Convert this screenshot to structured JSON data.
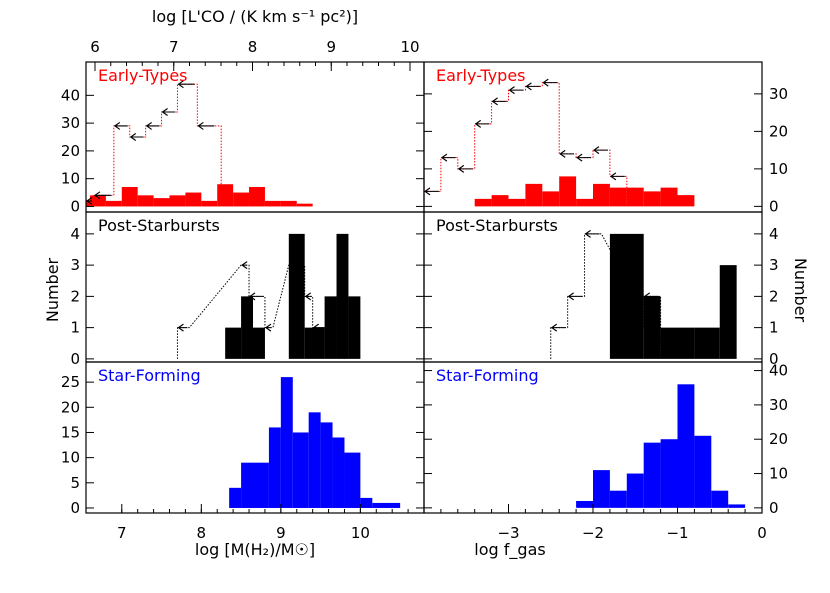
{
  "figure": {
    "top_axis_label": "log [L'CO / (K km s⁻¹ pc²)]",
    "top_axis_ticks": [
      6,
      7,
      8,
      9,
      10
    ],
    "left_xlabel": "log [M(H₂)/M☉]",
    "right_xlabel": "log f_gas",
    "ylabel": "Number"
  },
  "chart_data": [
    {
      "type": "bar",
      "panel": "left-top",
      "title": "Early-Types",
      "color": "#ff0000",
      "xlim": [
        6.55,
        10.8
      ],
      "ylim": [
        -2,
        52
      ],
      "yticks": [
        0,
        10,
        20,
        30,
        40
      ],
      "ticks_side": "left",
      "bins": [
        {
          "x0": 6.4,
          "x1": 6.6,
          "v": 2
        },
        {
          "x0": 6.6,
          "x1": 6.8,
          "v": 4
        },
        {
          "x0": 6.8,
          "x1": 7.0,
          "v": 2
        },
        {
          "x0": 7.0,
          "x1": 7.2,
          "v": 7
        },
        {
          "x0": 7.2,
          "x1": 7.4,
          "v": 4
        },
        {
          "x0": 7.4,
          "x1": 7.6,
          "v": 3
        },
        {
          "x0": 7.6,
          "x1": 7.8,
          "v": 4
        },
        {
          "x0": 7.8,
          "x1": 8.0,
          "v": 5
        },
        {
          "x0": 8.0,
          "x1": 8.2,
          "v": 2
        },
        {
          "x0": 8.2,
          "x1": 8.4,
          "v": 8
        },
        {
          "x0": 8.4,
          "x1": 8.6,
          "v": 5
        },
        {
          "x0": 8.6,
          "x1": 8.8,
          "v": 7
        },
        {
          "x0": 8.8,
          "x1": 9.0,
          "v": 2
        },
        {
          "x0": 9.0,
          "x1": 9.2,
          "v": 2
        },
        {
          "x0": 9.2,
          "x1": 9.4,
          "v": 1
        }
      ],
      "limits": [
        {
          "x0": 6.55,
          "x1": 6.65,
          "v": 2
        },
        {
          "x0": 6.65,
          "x1": 6.9,
          "v": 4
        },
        {
          "x0": 6.9,
          "x1": 7.1,
          "v": 29
        },
        {
          "x0": 7.1,
          "x1": 7.3,
          "v": 25
        },
        {
          "x0": 7.3,
          "x1": 7.5,
          "v": 29
        },
        {
          "x0": 7.5,
          "x1": 7.7,
          "v": 34
        },
        {
          "x0": 7.7,
          "x1": 7.95,
          "v": 44
        },
        {
          "x0": 7.95,
          "x1": 8.25,
          "v": 29
        }
      ]
    },
    {
      "type": "bar",
      "panel": "right-top",
      "title": "Early-Types",
      "color": "#ff0000",
      "xlim": [
        -4,
        0
      ],
      "ylim": [
        -1.5,
        38.5
      ],
      "yticks": [
        0,
        10,
        20,
        30
      ],
      "ticks_side": "right",
      "bins": [
        {
          "x0": -3.4,
          "x1": -3.2,
          "v": 2
        },
        {
          "x0": -3.2,
          "x1": -3.0,
          "v": 3
        },
        {
          "x0": -3.0,
          "x1": -2.8,
          "v": 2
        },
        {
          "x0": -2.8,
          "x1": -2.6,
          "v": 6
        },
        {
          "x0": -2.6,
          "x1": -2.4,
          "v": 4
        },
        {
          "x0": -2.4,
          "x1": -2.2,
          "v": 8
        },
        {
          "x0": -2.2,
          "x1": -2.0,
          "v": 2
        },
        {
          "x0": -2.0,
          "x1": -1.8,
          "v": 6
        },
        {
          "x0": -1.8,
          "x1": -1.6,
          "v": 5
        },
        {
          "x0": -1.6,
          "x1": -1.4,
          "v": 5
        },
        {
          "x0": -1.4,
          "x1": -1.2,
          "v": 4
        },
        {
          "x0": -1.2,
          "x1": -1.0,
          "v": 5
        },
        {
          "x0": -1.0,
          "x1": -0.8,
          "v": 3
        }
      ],
      "limits": [
        {
          "x0": -4.0,
          "x1": -3.8,
          "v": 4
        },
        {
          "x0": -3.8,
          "x1": -3.6,
          "v": 13
        },
        {
          "x0": -3.6,
          "x1": -3.4,
          "v": 10
        },
        {
          "x0": -3.4,
          "x1": -3.2,
          "v": 22
        },
        {
          "x0": -3.2,
          "x1": -3.0,
          "v": 28
        },
        {
          "x0": -3.0,
          "x1": -2.8,
          "v": 31
        },
        {
          "x0": -2.8,
          "x1": -2.6,
          "v": 32
        },
        {
          "x0": -2.6,
          "x1": -2.4,
          "v": 33
        },
        {
          "x0": -2.4,
          "x1": -2.2,
          "v": 14
        },
        {
          "x0": -2.2,
          "x1": -2.0,
          "v": 13
        },
        {
          "x0": -2.0,
          "x1": -1.8,
          "v": 15
        },
        {
          "x0": -1.8,
          "x1": -1.6,
          "v": 8
        }
      ]
    },
    {
      "type": "bar",
      "panel": "left-mid",
      "title": "Post-Starbursts",
      "color": "#000000",
      "xlim": [
        6.55,
        10.8
      ],
      "ylim": [
        -0.1,
        4.7
      ],
      "yticks": [
        0,
        1,
        2,
        3,
        4
      ],
      "ticks_side": "left",
      "bins": [
        {
          "x0": 8.3,
          "x1": 8.5,
          "v": 1
        },
        {
          "x0": 8.5,
          "x1": 8.65,
          "v": 2
        },
        {
          "x0": 8.65,
          "x1": 8.8,
          "v": 1
        },
        {
          "x0": 9.1,
          "x1": 9.3,
          "v": 4
        },
        {
          "x0": 9.3,
          "x1": 9.55,
          "v": 1
        },
        {
          "x0": 9.55,
          "x1": 9.7,
          "v": 2
        },
        {
          "x0": 9.7,
          "x1": 9.85,
          "v": 4
        },
        {
          "x0": 9.85,
          "x1": 10.0,
          "v": 2
        }
      ],
      "limits": [
        {
          "x0": 7.7,
          "x1": 7.85,
          "v": 1
        },
        {
          "x0": 8.5,
          "x1": 8.6,
          "v": 3
        },
        {
          "x0": 8.6,
          "x1": 8.8,
          "v": 2
        },
        {
          "x0": 8.8,
          "x1": 8.9,
          "v": 1
        },
        {
          "x0": 9.1,
          "x1": 9.3,
          "v": 3
        },
        {
          "x0": 9.3,
          "x1": 9.4,
          "v": 2
        },
        {
          "x0": 9.4,
          "x1": 9.6,
          "v": 1
        },
        {
          "x0": 9.6,
          "x1": 9.8,
          "v": 1
        }
      ]
    },
    {
      "type": "bar",
      "panel": "right-mid",
      "title": "Post-Starbursts",
      "color": "#000000",
      "xlim": [
        -4,
        0
      ],
      "ylim": [
        -0.1,
        4.7
      ],
      "yticks": [
        0,
        1,
        2,
        3,
        4
      ],
      "ticks_side": "right",
      "bins": [
        {
          "x0": -1.8,
          "x1": -1.4,
          "v": 4
        },
        {
          "x0": -1.4,
          "x1": -1.2,
          "v": 2
        },
        {
          "x0": -1.2,
          "x1": -1.0,
          "v": 1
        },
        {
          "x0": -1.0,
          "x1": -0.8,
          "v": 1
        },
        {
          "x0": -0.8,
          "x1": -0.5,
          "v": 1
        },
        {
          "x0": -0.5,
          "x1": -0.3,
          "v": 3
        }
      ],
      "limits": [
        {
          "x0": -2.5,
          "x1": -2.3,
          "v": 1
        },
        {
          "x0": -2.3,
          "x1": -2.1,
          "v": 2
        },
        {
          "x0": -2.1,
          "x1": -1.9,
          "v": 4
        },
        {
          "x0": -1.7,
          "x1": -1.6,
          "v": 3
        },
        {
          "x0": -1.6,
          "x1": -1.4,
          "v": 1
        },
        {
          "x0": -1.4,
          "x1": -1.2,
          "v": 2
        }
      ]
    },
    {
      "type": "bar",
      "panel": "left-bot",
      "title": "Star-Forming",
      "color": "#0000ff",
      "xlim": [
        6.55,
        10.8
      ],
      "ylim": [
        -1,
        29
      ],
      "yticks": [
        0,
        5,
        10,
        15,
        20,
        25
      ],
      "ticks_side": "left",
      "bins": [
        {
          "x0": 8.35,
          "x1": 8.5,
          "v": 4
        },
        {
          "x0": 8.5,
          "x1": 8.85,
          "v": 9
        },
        {
          "x0": 8.85,
          "x1": 9.0,
          "v": 16
        },
        {
          "x0": 9.0,
          "x1": 9.15,
          "v": 26
        },
        {
          "x0": 9.15,
          "x1": 9.35,
          "v": 15
        },
        {
          "x0": 9.35,
          "x1": 9.5,
          "v": 19
        },
        {
          "x0": 9.5,
          "x1": 9.65,
          "v": 17
        },
        {
          "x0": 9.65,
          "x1": 9.8,
          "v": 14
        },
        {
          "x0": 9.8,
          "x1": 10.0,
          "v": 11
        },
        {
          "x0": 10.0,
          "x1": 10.15,
          "v": 2
        },
        {
          "x0": 10.15,
          "x1": 10.5,
          "v": 1
        }
      ],
      "limits": []
    },
    {
      "type": "bar",
      "panel": "right-bot",
      "title": "Star-Forming",
      "color": "#0000ff",
      "xlim": [
        -4,
        0
      ],
      "ylim": [
        -1.5,
        42.5
      ],
      "yticks": [
        0,
        10,
        20,
        30,
        40
      ],
      "ticks_side": "right",
      "bins": [
        {
          "x0": -2.2,
          "x1": -2.0,
          "v": 2
        },
        {
          "x0": -2.0,
          "x1": -1.8,
          "v": 11
        },
        {
          "x0": -1.8,
          "x1": -1.6,
          "v": 5
        },
        {
          "x0": -1.6,
          "x1": -1.4,
          "v": 10
        },
        {
          "x0": -1.4,
          "x1": -1.2,
          "v": 19
        },
        {
          "x0": -1.2,
          "x1": -1.0,
          "v": 20
        },
        {
          "x0": -1.0,
          "x1": -0.8,
          "v": 36
        },
        {
          "x0": -0.8,
          "x1": -0.6,
          "v": 21
        },
        {
          "x0": -0.6,
          "x1": -0.4,
          "v": 5
        },
        {
          "x0": -0.4,
          "x1": -0.2,
          "v": 1
        }
      ],
      "limits": []
    }
  ],
  "xaxes": {
    "left_bottom_ticks": [
      7,
      8,
      9,
      10
    ],
    "right_bottom_ticks": [
      -3,
      -2,
      -1,
      0
    ]
  }
}
